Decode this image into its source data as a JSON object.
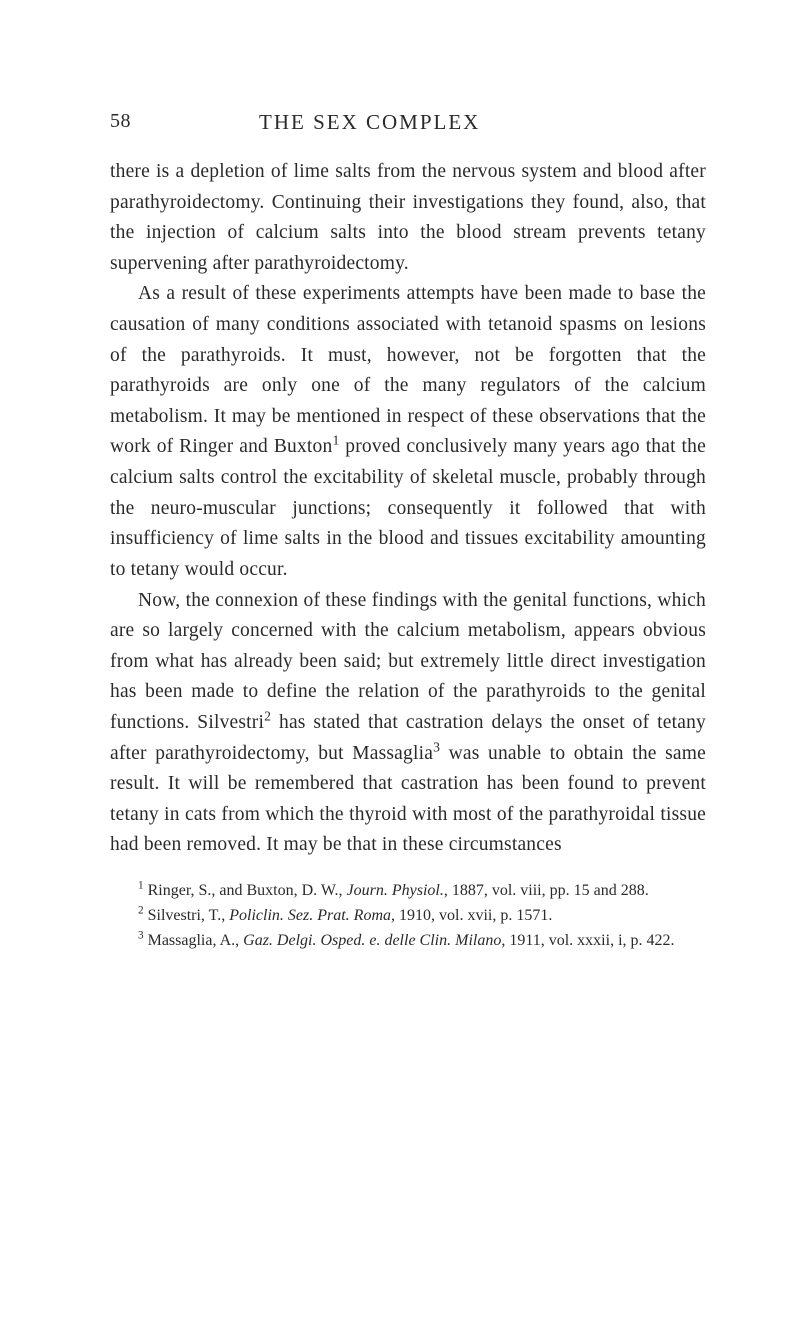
{
  "header": {
    "page_number": "58",
    "title": "THE SEX COMPLEX"
  },
  "paragraphs": {
    "p1": "there is a depletion of lime salts from the nervous system and blood after parathyroidectomy. Continuing their investigations they found, also, that the injection of calcium salts into the blood stream prevents tetany supervening after parathyroidectomy.",
    "p2_a": "As a result of these experiments attempts have been made to base the causation of many conditions associated with tetanoid spasms on lesions of the parathyroids. It must, however, not be forgotten that the parathyroids are only one of the many regulators of the calcium metabolism. It may be mentioned in respect of these observations that the work of Ringer and Buxton",
    "p2_sup1": "1",
    "p2_b": " proved conclusively many years ago that the calcium salts con­trol the excitability of skeletal muscle, probably through the neuro-muscular junctions; consequently it followed that with insufficiency of lime salts in the blood and tissues excitability amounting to tetany would occur.",
    "p3_a": "Now, the connexion of these findings with the genital functions, which are so largely concerned with the calcium metabolism, appears obvious from what has already been said; but extremely little direct investiga­tion has been made to define the relation of the para­thyroids to the genital functions. Silvestri",
    "p3_sup2": "2",
    "p3_b": " has stated that castration delays the onset of tetany after para­thyroidectomy, but Massaglia",
    "p3_sup3": "3",
    "p3_c": " was unable to obtain the same result. It will be remembered that castration has been found to prevent tetany in cats from which the thyroid with most of the parathyroidal tissue had been removed. It may be that in these circumstances"
  },
  "footnotes": {
    "fn1_sup": "1",
    "fn1_a": " Ringer, S., and Buxton, D. W., ",
    "fn1_i": "Journ. Physiol.",
    "fn1_b": ", 1887, vol. viii, pp. 15 and 288.",
    "fn2_sup": "2",
    "fn2_a": " Silvestri, T., ",
    "fn2_i": "Policlin. Sez. Prat. Roma",
    "fn2_b": ", 1910, vol. xvii, p. 1571.",
    "fn3_sup": "3",
    "fn3_a": " Massaglia, A., ",
    "fn3_i": "Gaz. Delgi. Osped. e. delle Clin. Milano",
    "fn3_b": ", 1911, vol. xxxii, i, p. 422."
  }
}
